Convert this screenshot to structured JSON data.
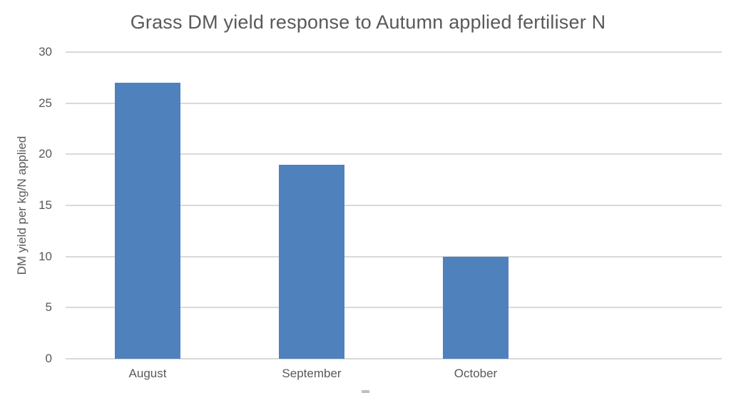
{
  "chart_data": {
    "type": "bar",
    "title": "Grass DM yield response to Autumn applied fertiliser N",
    "categories": [
      "August",
      "September",
      "October"
    ],
    "values": [
      27,
      19,
      10
    ],
    "xlabel": "",
    "ylabel": "DM yield per kg/N applied",
    "ylim": [
      0,
      30
    ],
    "yticks": [
      0,
      5,
      10,
      15,
      20,
      25,
      30
    ],
    "grid": true,
    "legend": "none",
    "colors": {
      "bar": "#4F81BD",
      "text": "#595959",
      "gridline": "#D9D9D9"
    },
    "layout_hints": {
      "category_slots": 4,
      "bar_width_fraction_of_slot": 0.4,
      "gridlines_horizontal": true,
      "axis_lines": "none"
    }
  }
}
